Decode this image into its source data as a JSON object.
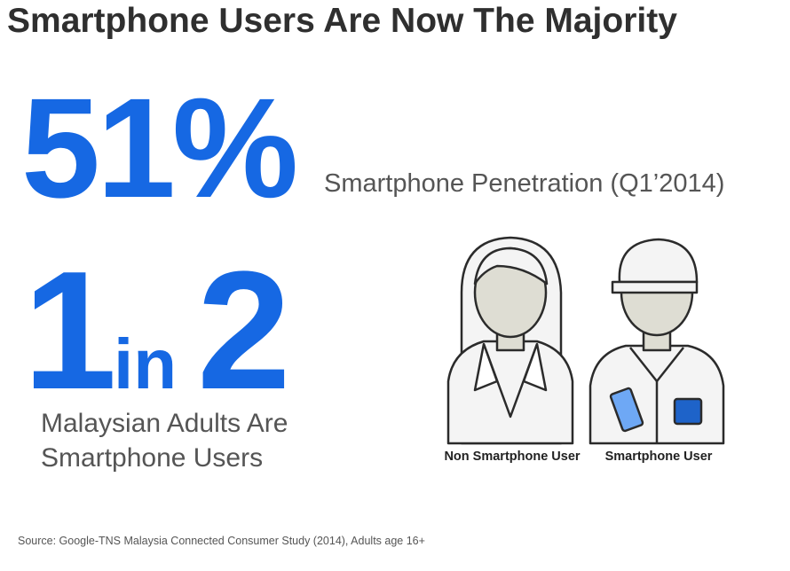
{
  "title": "Smartphone Users Are Now The Majority",
  "penetration": {
    "value": "51%",
    "label": "Smartphone Penetration (Q1’2014)"
  },
  "ratio": {
    "numerator": "1",
    "word": "in",
    "denominator": "2",
    "caption": [
      "Malaysian Adults Are",
      "Smartphone Users"
    ]
  },
  "figures": [
    {
      "label": "Non Smartphone User"
    },
    {
      "label": "Smartphone User"
    }
  ],
  "source": "Source: Google-TNS Malaysia Connected Consumer Study (2014), Adults age 16+"
}
